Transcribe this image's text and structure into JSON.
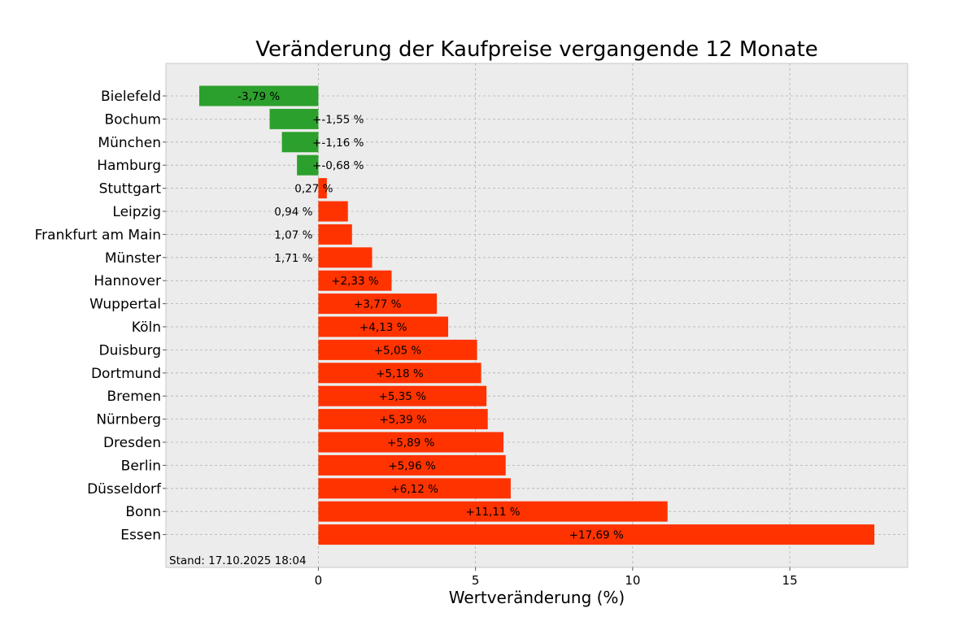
{
  "chart_data": {
    "type": "bar",
    "orientation": "horizontal",
    "title": "Veränderung der Kaufpreise vergangende 12 Monate",
    "xlabel": "Wertveränderung (%)",
    "ylabel": "",
    "xlim": [
      -4.85,
      18.75
    ],
    "xticks": [
      0,
      5,
      10,
      15
    ],
    "xtick_labels": [
      "0",
      "5",
      "10",
      "15"
    ],
    "grid": true,
    "footnote": "Stand: 17.10.2025 18:04",
    "colors": {
      "negative": "#2ca02c",
      "positive": "#ff3300",
      "plot_background": "#ececec",
      "grid": "#b0b0b0"
    },
    "categories": [
      "Bielefeld",
      "Bochum",
      "München",
      "Hamburg",
      "Stuttgart",
      "Leipzig",
      "Frankfurt am Main",
      "Münster",
      "Hannover",
      "Wuppertal",
      "Köln",
      "Duisburg",
      "Dortmund",
      "Bremen",
      "Nürnberg",
      "Dresden",
      "Berlin",
      "Düsseldorf",
      "Bonn",
      "Essen"
    ],
    "values": [
      -3.79,
      -1.55,
      -1.16,
      -0.68,
      0.27,
      0.94,
      1.07,
      1.71,
      2.33,
      3.77,
      4.13,
      5.05,
      5.18,
      5.35,
      5.39,
      5.89,
      5.96,
      6.12,
      11.11,
      17.69
    ],
    "data_labels": [
      "-3,79 %",
      "+-1,55 %",
      "+-1,16 %",
      "+-0,68 %",
      "0,27 %",
      "0,94 %",
      "1,07 %",
      "1,71 %",
      "+2,33 %",
      "+3,77 %",
      "+4,13 %",
      "+5,05 %",
      "+5,18 %",
      "+5,35 %",
      "+5,39 %",
      "+5,89 %",
      "+5,96 %",
      "+6,12 %",
      "+11,11 %",
      "+17,69 %"
    ]
  }
}
